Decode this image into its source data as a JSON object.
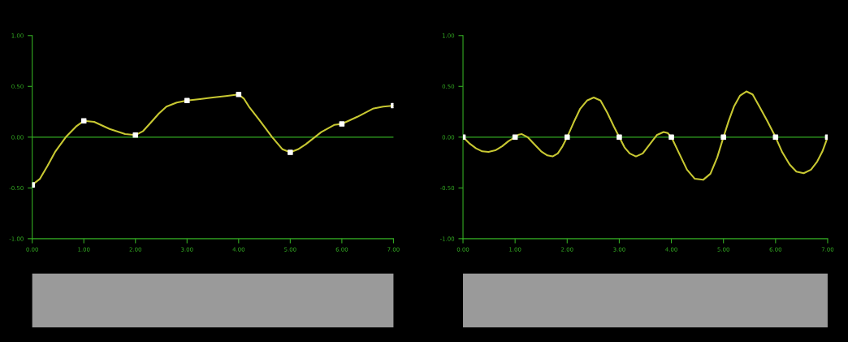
{
  "chart_data": [
    {
      "type": "line",
      "x": [
        0,
        1,
        2,
        3,
        4,
        5,
        6,
        7
      ],
      "xlim": [
        0,
        7
      ],
      "ylim": [
        -1,
        1
      ],
      "xticks": [
        {
          "value": 0,
          "label": "0.00"
        },
        {
          "value": 1,
          "label": "1.00"
        },
        {
          "value": 2,
          "label": "2.00"
        },
        {
          "value": 3,
          "label": "3.00"
        },
        {
          "value": 4,
          "label": "4.00"
        },
        {
          "value": 5,
          "label": "5.00"
        },
        {
          "value": 6,
          "label": "6.00"
        },
        {
          "value": 7,
          "label": "7.00"
        }
      ],
      "yticks": [
        {
          "value": -1,
          "label": "-1.00"
        },
        {
          "value": -0.5,
          "label": "-0.50"
        },
        {
          "value": 0,
          "label": "0.00"
        },
        {
          "value": 0.5,
          "label": "0.50"
        },
        {
          "value": 1,
          "label": "1.00"
        }
      ],
      "ref_lines": [
        {
          "axis": "y",
          "value": 0,
          "color": "#33aa22"
        }
      ],
      "series": [
        {
          "color": "#c8c832",
          "x": [
            0,
            0.15,
            0.3,
            0.45,
            0.65,
            0.85,
            1,
            1.2,
            1.5,
            1.8,
            2,
            2.15,
            2.3,
            2.45,
            2.6,
            2.8,
            3,
            3.25,
            3.5,
            3.75,
            4,
            4.1,
            4.2,
            4.4,
            4.65,
            4.85,
            5,
            5.15,
            5.3,
            5.6,
            5.85,
            6,
            6.3,
            6.6,
            6.8,
            7
          ],
          "values": [
            -0.47,
            -0.41,
            -0.28,
            -0.14,
            0,
            0.105,
            0.16,
            0.15,
            0.08,
            0.03,
            0.02,
            0.06,
            0.145,
            0.23,
            0.3,
            0.34,
            0.36,
            0.375,
            0.39,
            0.405,
            0.42,
            0.38,
            0.3,
            0.17,
            0,
            -0.12,
            -0.15,
            -0.12,
            -0.07,
            0.05,
            0.12,
            0.13,
            0.2,
            0.28,
            0.3,
            0.31
          ]
        },
        {
          "type": "scatter",
          "color": "#ffffff",
          "marker": "square",
          "values": [
            -0.47,
            0.16,
            0.02,
            0.36,
            0.42,
            -0.15,
            0.13,
            0.31
          ]
        }
      ]
    },
    {
      "type": "line",
      "x": [
        0,
        1,
        2,
        3,
        4,
        5,
        6,
        7
      ],
      "xlim": [
        0,
        7
      ],
      "ylim": [
        -1,
        1
      ],
      "xticks": [
        {
          "value": 0,
          "label": "0.00"
        },
        {
          "value": 1,
          "label": "1.00"
        },
        {
          "value": 2,
          "label": "2.00"
        },
        {
          "value": 3,
          "label": "3.00"
        },
        {
          "value": 4,
          "label": "4.00"
        },
        {
          "value": 5,
          "label": "5.00"
        },
        {
          "value": 6,
          "label": "6.00"
        },
        {
          "value": 7,
          "label": "7.00"
        }
      ],
      "yticks": [
        {
          "value": -1,
          "label": "-1.00"
        },
        {
          "value": -0.5,
          "label": "-0.50"
        },
        {
          "value": 0,
          "label": "0.00"
        },
        {
          "value": 0.5,
          "label": "0.50"
        },
        {
          "value": 1,
          "label": "1.00"
        }
      ],
      "ref_lines": [
        {
          "axis": "y",
          "value": 0,
          "color": "#33aa22"
        }
      ],
      "series": [
        {
          "color": "#c8c832",
          "x": [
            0,
            0.12,
            0.25,
            0.37,
            0.49,
            0.62,
            0.75,
            0.87,
            1,
            1.07,
            1.13,
            1.24,
            1.35,
            1.5,
            1.62,
            1.72,
            1.82,
            1.91,
            2,
            2.12,
            2.25,
            2.38,
            2.51,
            2.64,
            2.77,
            2.9,
            3,
            3.1,
            3.2,
            3.32,
            3.45,
            3.6,
            3.72,
            3.85,
            3.93,
            4,
            4.15,
            4.3,
            4.45,
            4.61,
            4.75,
            4.88,
            5,
            5.1,
            5.2,
            5.32,
            5.44,
            5.56,
            5.68,
            5.84,
            6,
            6.13,
            6.27,
            6.4,
            6.54,
            6.68,
            6.8,
            6.9,
            7
          ],
          "values": [
            0,
            -0.06,
            -0.11,
            -0.14,
            -0.145,
            -0.13,
            -0.09,
            -0.04,
            0,
            0.025,
            0.03,
            0.0,
            -0.06,
            -0.14,
            -0.18,
            -0.19,
            -0.16,
            -0.09,
            0,
            0.14,
            0.28,
            0.36,
            0.39,
            0.36,
            0.24,
            0.1,
            0,
            -0.1,
            -0.16,
            -0.19,
            -0.16,
            -0.06,
            0.02,
            0.05,
            0.04,
            0,
            -0.16,
            -0.32,
            -0.41,
            -0.42,
            -0.36,
            -0.2,
            0,
            0.16,
            0.3,
            0.41,
            0.45,
            0.42,
            0.31,
            0.16,
            0,
            -0.15,
            -0.27,
            -0.34,
            -0.355,
            -0.32,
            -0.24,
            -0.14,
            0
          ]
        },
        {
          "type": "scatter",
          "color": "#ffffff",
          "marker": "square",
          "values": [
            0,
            0,
            0,
            0,
            0,
            0,
            0,
            0
          ]
        }
      ]
    }
  ]
}
